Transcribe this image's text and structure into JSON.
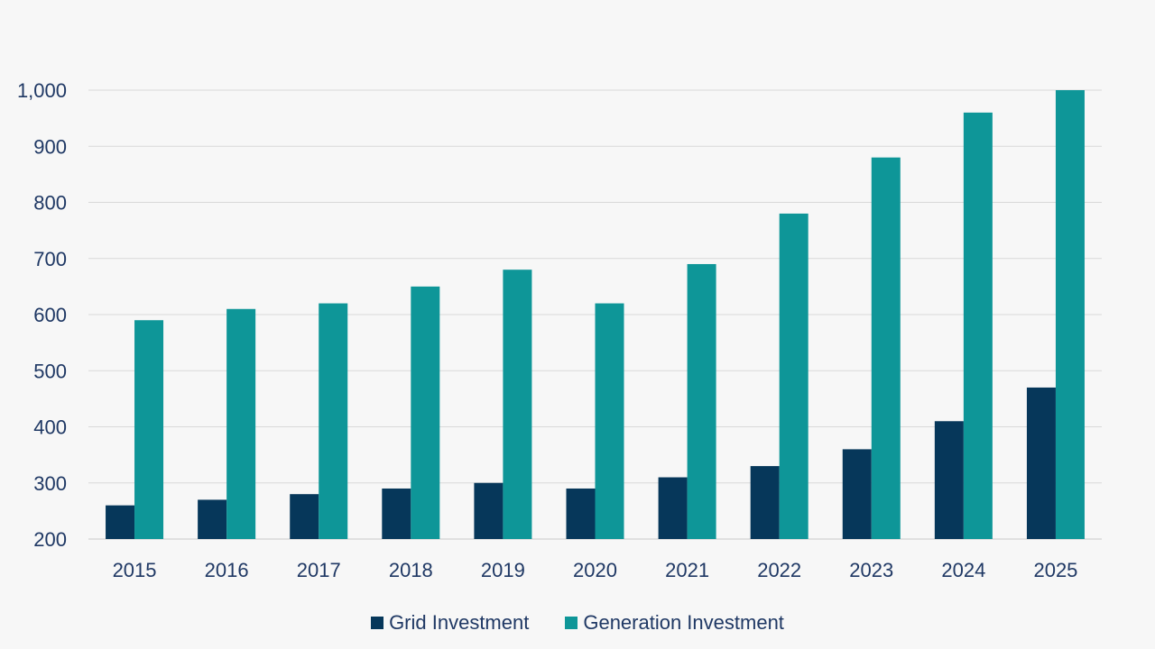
{
  "chart_data": {
    "type": "bar",
    "categories": [
      "2015",
      "2016",
      "2017",
      "2018",
      "2019",
      "2020",
      "2021",
      "2022",
      "2023",
      "2024",
      "2025"
    ],
    "series": [
      {
        "name": "Grid Investment",
        "color": "#06375a",
        "values": [
          260,
          270,
          280,
          290,
          300,
          290,
          310,
          330,
          360,
          410,
          470
        ]
      },
      {
        "name": "Generation Investment",
        "color": "#0e9698",
        "values": [
          590,
          610,
          620,
          650,
          680,
          620,
          690,
          780,
          880,
          960,
          1000
        ]
      }
    ],
    "ylim": [
      200,
      1000
    ],
    "yticks": [
      200,
      300,
      400,
      500,
      600,
      700,
      800,
      900,
      1000
    ],
    "ytick_labels": [
      "200",
      "300",
      "400",
      "500",
      "600",
      "700",
      "800",
      "900",
      "1,000"
    ],
    "grid": true,
    "legend_position": "bottom",
    "title": "",
    "xlabel": "",
    "ylabel": ""
  }
}
